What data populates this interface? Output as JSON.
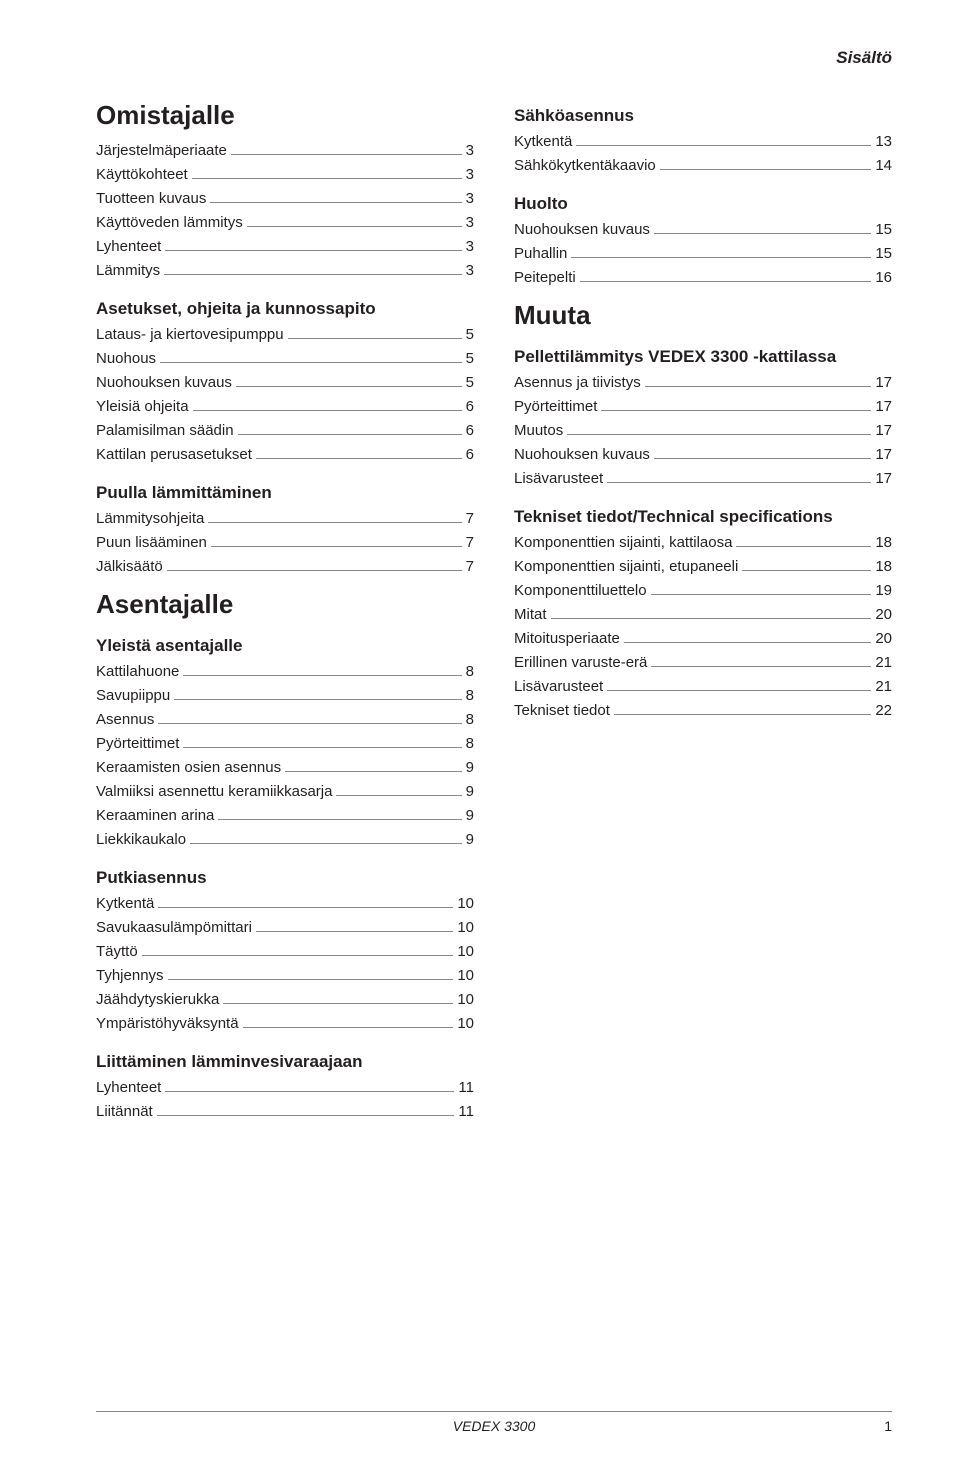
{
  "header": {
    "title": "Sisältö"
  },
  "footer": {
    "product": "VEDEX 3300",
    "page": "1"
  },
  "left": [
    {
      "type": "h1",
      "text": "Omistajalle"
    },
    {
      "type": "row",
      "label": "Järjestelmäperiaate",
      "page": "3"
    },
    {
      "type": "row",
      "label": "Käyttökohteet",
      "page": "3"
    },
    {
      "type": "row",
      "label": "Tuotteen kuvaus",
      "page": "3"
    },
    {
      "type": "row",
      "label": "Käyttöveden lämmitys",
      "page": "3"
    },
    {
      "type": "row",
      "label": "Lyhenteet",
      "page": "3"
    },
    {
      "type": "row",
      "label": "Lämmitys",
      "page": "3"
    },
    {
      "type": "h2",
      "text": "Asetukset, ohjeita ja kunnossapito"
    },
    {
      "type": "row",
      "label": "Lataus- ja kiertovesipumppu",
      "page": "5"
    },
    {
      "type": "row",
      "label": "Nuohous",
      "page": "5"
    },
    {
      "type": "row",
      "label": "Nuohouksen kuvaus",
      "page": "5"
    },
    {
      "type": "row",
      "label": "Yleisiä ohjeita",
      "page": "6"
    },
    {
      "type": "row",
      "label": "Palamisilman säädin",
      "page": "6"
    },
    {
      "type": "row",
      "label": "Kattilan perusasetukset",
      "page": "6"
    },
    {
      "type": "h2",
      "text": "Puulla lämmittäminen"
    },
    {
      "type": "row",
      "label": "Lämmitysohjeita",
      "page": "7"
    },
    {
      "type": "row",
      "label": "Puun lisääminen",
      "page": "7"
    },
    {
      "type": "row",
      "label": "Jälkisäätö",
      "page": "7"
    },
    {
      "type": "h1",
      "text": "Asentajalle"
    },
    {
      "type": "h2",
      "text": "Yleistä asentajalle"
    },
    {
      "type": "row",
      "label": "Kattilahuone",
      "page": "8"
    },
    {
      "type": "row",
      "label": "Savupiippu",
      "page": "8"
    },
    {
      "type": "row",
      "label": "Asennus",
      "page": "8"
    },
    {
      "type": "row",
      "label": "Pyörteittimet",
      "page": "8"
    },
    {
      "type": "row",
      "label": "Keraamisten osien asennus",
      "page": "9"
    },
    {
      "type": "row",
      "label": "Valmiiksi asennettu keramiikkasarja",
      "page": "9"
    },
    {
      "type": "row",
      "label": "Keraaminen arina",
      "page": "9"
    },
    {
      "type": "row",
      "label": "Liekkikaukalo",
      "page": "9"
    },
    {
      "type": "h2",
      "text": "Putkiasennus"
    },
    {
      "type": "row",
      "label": "Kytkentä",
      "page": "10"
    },
    {
      "type": "row",
      "label": "Savukaasulämpömittari",
      "page": "10"
    },
    {
      "type": "row",
      "label": "Täyttö",
      "page": "10"
    },
    {
      "type": "row",
      "label": "Tyhjennys",
      "page": "10"
    },
    {
      "type": "row",
      "label": "Jäähdytyskierukka",
      "page": "10"
    },
    {
      "type": "row",
      "label": "Ympäristöhyväksyntä",
      "page": "10"
    },
    {
      "type": "h2",
      "text": "Liittäminen lämminvesivaraajaan"
    },
    {
      "type": "row",
      "label": "Lyhenteet",
      "page": "11"
    },
    {
      "type": "row",
      "label": "Liitännät",
      "page": "11"
    }
  ],
  "right": [
    {
      "type": "h2",
      "text": "Sähköasennus"
    },
    {
      "type": "row",
      "label": "Kytkentä",
      "page": "13"
    },
    {
      "type": "row",
      "label": "Sähkökytkentäkaavio",
      "page": "14"
    },
    {
      "type": "h2",
      "text": "Huolto"
    },
    {
      "type": "row",
      "label": "Nuohouksen kuvaus",
      "page": "15"
    },
    {
      "type": "row",
      "label": "Puhallin",
      "page": "15"
    },
    {
      "type": "row",
      "label": "Peitepelti",
      "page": "16"
    },
    {
      "type": "h1",
      "text": "Muuta"
    },
    {
      "type": "h2",
      "text": "Pellettilämmitys VEDEX 3300 -kattilassa"
    },
    {
      "type": "row",
      "label": "Asennus ja tiivistys",
      "page": "17"
    },
    {
      "type": "row",
      "label": "Pyörteittimet",
      "page": "17"
    },
    {
      "type": "row",
      "label": "Muutos",
      "page": "17"
    },
    {
      "type": "row",
      "label": "Nuohouksen kuvaus",
      "page": "17"
    },
    {
      "type": "row",
      "label": "Lisävarusteet",
      "page": "17"
    },
    {
      "type": "h2",
      "text": "Tekniset tiedot/Technical specifications"
    },
    {
      "type": "row",
      "label": "Komponenttien sijainti, kattilaosa",
      "page": "18"
    },
    {
      "type": "row",
      "label": "Komponenttien sijainti, etupaneeli",
      "page": "18"
    },
    {
      "type": "row",
      "label": "Komponenttiluettelo",
      "page": "19"
    },
    {
      "type": "row",
      "label": "Mitat",
      "page": "20"
    },
    {
      "type": "row",
      "label": "Mitoitusperiaate",
      "page": "20"
    },
    {
      "type": "row",
      "label": "Erillinen varuste-erä",
      "page": "21"
    },
    {
      "type": "row",
      "label": "Lisävarusteet",
      "page": "21"
    },
    {
      "type": "row",
      "label": "Tekniset tiedot",
      "page": "22"
    }
  ]
}
